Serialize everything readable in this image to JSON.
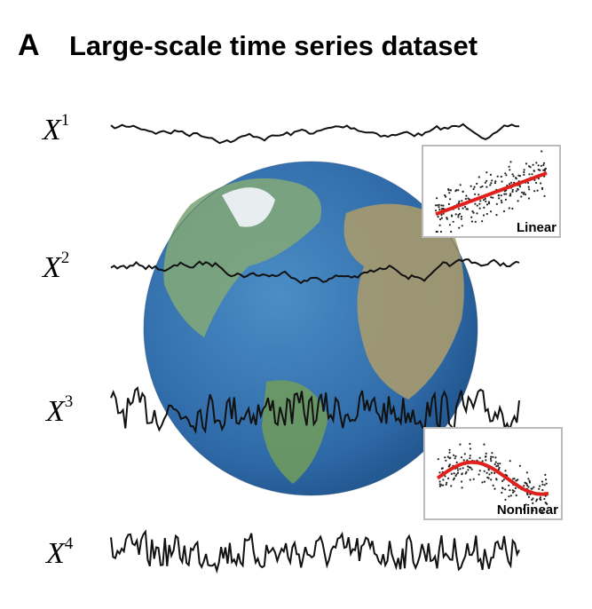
{
  "panel_label": "A",
  "title": "Large-scale time series dataset",
  "series": [
    {
      "symbol": "X",
      "index": "1"
    },
    {
      "symbol": "X",
      "index": "2"
    },
    {
      "symbol": "X",
      "index": "3"
    },
    {
      "symbol": "X",
      "index": "4"
    }
  ],
  "insets": [
    {
      "label": "Linear"
    },
    {
      "label": "Nonlinear"
    }
  ]
}
